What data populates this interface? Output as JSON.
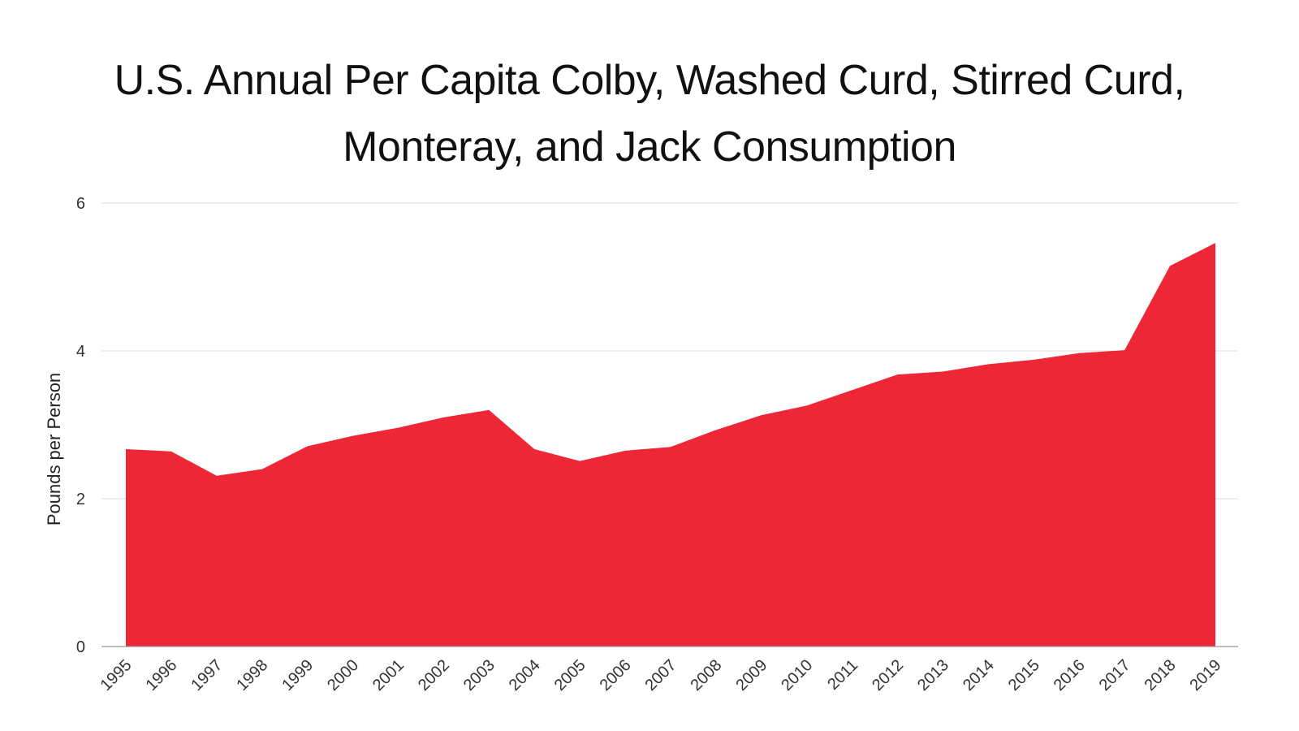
{
  "chart_data": {
    "type": "area",
    "title_lines": [
      "U.S. Annual Per Capita Colby, Washed Curd, Stirred Curd,",
      "Monteray, and Jack Consumption"
    ],
    "xlabel": "",
    "ylabel": "Pounds per Person",
    "x": [
      "1995",
      "1996",
      "1997",
      "1998",
      "1999",
      "2000",
      "2001",
      "2002",
      "2003",
      "2004",
      "2005",
      "2006",
      "2007",
      "2008",
      "2009",
      "2010",
      "2011",
      "2012",
      "2013",
      "2014",
      "2015",
      "2016",
      "2017",
      "2018",
      "2019"
    ],
    "series": [
      {
        "values": [
          2.67,
          2.64,
          2.31,
          2.4,
          2.71,
          2.85,
          2.96,
          3.1,
          3.2,
          2.67,
          2.51,
          2.65,
          2.7,
          2.93,
          3.13,
          3.26,
          3.47,
          3.68,
          3.72,
          3.82,
          3.88,
          3.97,
          4.01,
          5.15,
          5.46
        ],
        "color": "#ee2737"
      }
    ],
    "ylim": [
      0,
      6
    ],
    "yticks": [
      0,
      2,
      4,
      6
    ],
    "grid": true,
    "legend": "none"
  }
}
